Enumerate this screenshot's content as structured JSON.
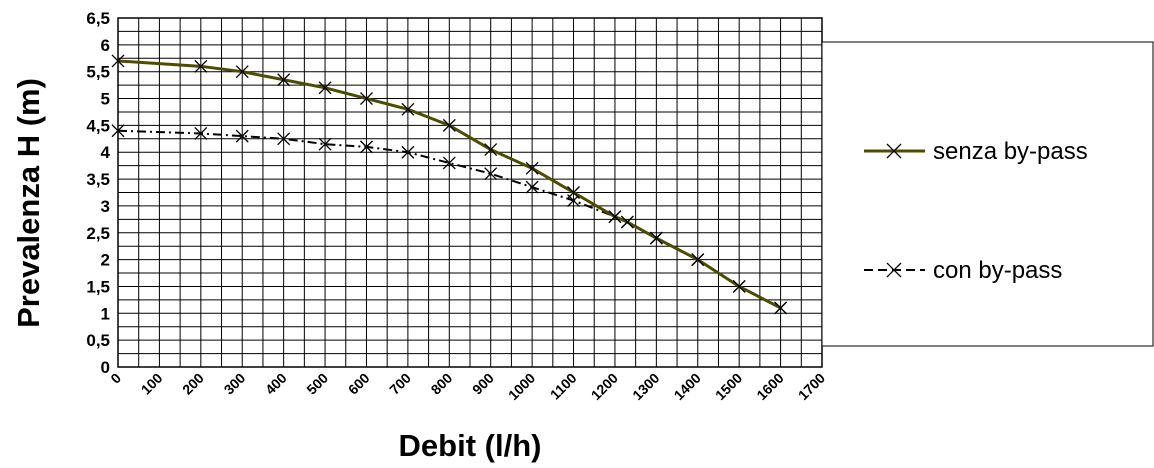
{
  "chart_data": {
    "type": "line",
    "xlabel": "Debit (l/h)",
    "ylabel": "Prevalenza H (m)",
    "xlim": [
      0,
      1700
    ],
    "ylim": [
      0,
      6.5
    ],
    "x_ticks": [
      "0",
      "100",
      "200",
      "300",
      "400",
      "500",
      "600",
      "700",
      "800",
      "900",
      "1000",
      "1100",
      "1200",
      "1300",
      "1400",
      "1500",
      "1600",
      "1700"
    ],
    "y_ticks": [
      "0",
      "0,5",
      "1",
      "1,5",
      "2",
      "2,5",
      "3",
      "3,5",
      "4",
      "4,5",
      "5",
      "5,5",
      "6",
      "6,5"
    ],
    "grid": true,
    "legend_position": "right",
    "series": [
      {
        "name": "senza by-pass",
        "color": "#4d4d00",
        "style": "solid",
        "marker": "x",
        "x": [
          0,
          200,
          300,
          400,
          500,
          600,
          700,
          800,
          900,
          1000,
          1100,
          1200,
          1230,
          1300,
          1400,
          1500,
          1600
        ],
        "y": [
          5.7,
          5.6,
          5.5,
          5.35,
          5.2,
          5.0,
          4.8,
          4.5,
          4.05,
          3.7,
          3.25,
          2.8,
          2.7,
          2.4,
          2.0,
          1.5,
          1.1
        ]
      },
      {
        "name": "con by-pass",
        "color": "#000000",
        "style": "dashdot",
        "marker": "x",
        "x": [
          0,
          200,
          300,
          400,
          500,
          600,
          700,
          800,
          900,
          1000,
          1100,
          1200,
          1230,
          1300,
          1400,
          1500,
          1600
        ],
        "y": [
          4.4,
          4.35,
          4.3,
          4.25,
          4.15,
          4.1,
          4.0,
          3.8,
          3.6,
          3.35,
          3.1,
          2.8,
          2.7,
          2.4,
          2.0,
          1.5,
          1.1
        ]
      }
    ]
  }
}
